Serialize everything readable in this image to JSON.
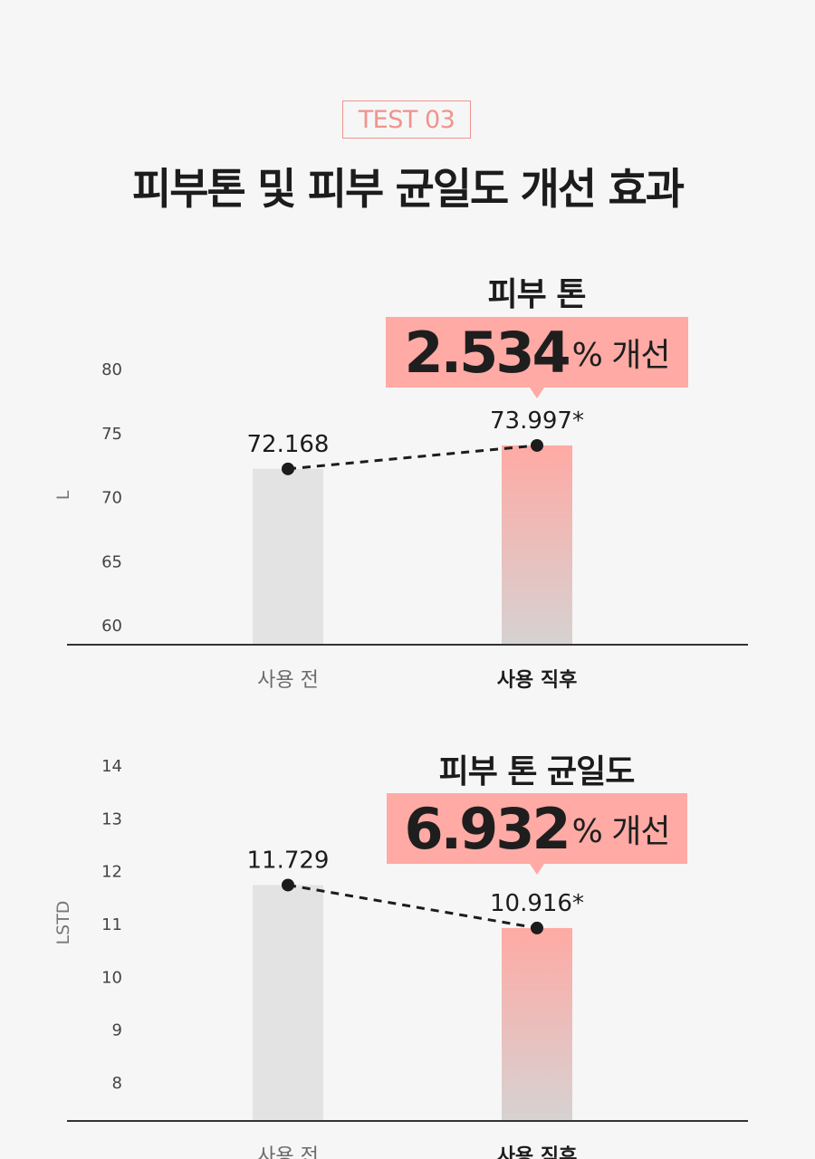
{
  "header": {
    "badge": "TEST 03",
    "title": "피부톤 및 피부 균일도 개선 효과"
  },
  "colors": {
    "accent": "#ffaaa4",
    "badge": "#f0938c",
    "bar_before": "#e3e3e3",
    "bar_after_top": "#ffaaa4",
    "bar_after_bottom": "#d6d2d2"
  },
  "chart_data": [
    {
      "type": "bar",
      "title": "피부 톤",
      "callout_value": "2.534",
      "callout_unit": "% 개선",
      "ylabel": "L",
      "ylim": [
        60,
        80
      ],
      "yticks": [
        60,
        65,
        70,
        75,
        80
      ],
      "categories": [
        "사용 전",
        "사용 직후"
      ],
      "values": [
        72.168,
        73.997
      ],
      "value_labels": [
        "72.168",
        "73.997*"
      ],
      "has_trend_line": true
    },
    {
      "type": "bar",
      "title": "피부 톤 균일도",
      "callout_value": "6.932",
      "callout_unit": "% 개선",
      "ylabel": "LSTD",
      "ylim": [
        8,
        14
      ],
      "yticks": [
        8,
        9,
        10,
        11,
        12,
        13,
        14
      ],
      "categories": [
        "사용 전",
        "사용 직후"
      ],
      "values": [
        11.729,
        10.916
      ],
      "value_labels": [
        "11.729",
        "10.916*"
      ],
      "has_trend_line": true
    }
  ]
}
